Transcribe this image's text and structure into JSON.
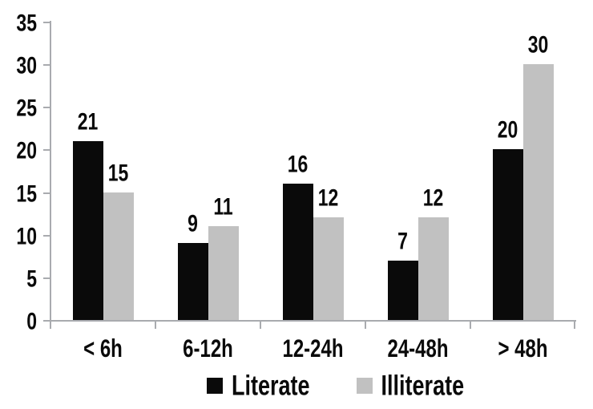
{
  "chart_data": {
    "type": "bar",
    "title": "",
    "xlabel": "",
    "ylabel": "",
    "categories": [
      "< 6h",
      "6-12h",
      "12-24h",
      "24-48h",
      "> 48h"
    ],
    "series": [
      {
        "name": "Literate",
        "color": "#0a0a0a",
        "values": [
          21,
          9,
          16,
          7,
          20
        ]
      },
      {
        "name": "Illiterate",
        "color": "#c1c1c1",
        "values": [
          15,
          11,
          12,
          12,
          30
        ]
      }
    ],
    "data_labels": true,
    "y_ticks": [
      0,
      5,
      10,
      15,
      20,
      25,
      30,
      35
    ],
    "ylim": [
      0,
      35
    ],
    "grid": false,
    "legend_position": "bottom",
    "colors": {
      "axis": "#a9abaf",
      "text": "#0a0a0a",
      "background": "#ffffff"
    }
  }
}
